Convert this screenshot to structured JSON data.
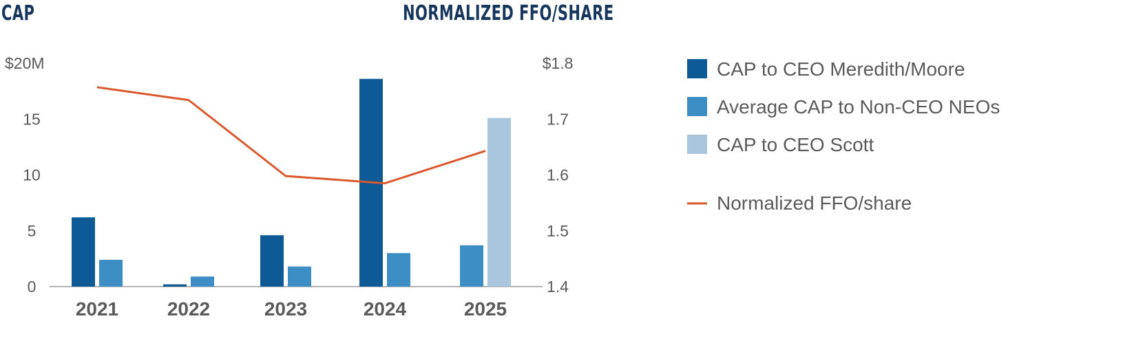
{
  "chart_data": {
    "type": "bar",
    "title_left": "CAP",
    "title_right": "NORMALIZED FFO/SHARE",
    "categories": [
      "2021",
      "2022",
      "2023",
      "2024",
      "2025"
    ],
    "y_left": {
      "ylim": [
        0,
        20
      ],
      "ticks": [
        "$20M",
        "15",
        "10",
        "5",
        "0"
      ],
      "tick_values": [
        20,
        15,
        10,
        5,
        0
      ]
    },
    "y_right": {
      "ylim": [
        1.4,
        1.8
      ],
      "ticks": [
        "$1.8",
        "1.7",
        "1.6",
        "1.5",
        "1.4"
      ],
      "tick_values": [
        1.8,
        1.7,
        1.6,
        1.5,
        1.4
      ]
    },
    "series": [
      {
        "name": "CAP to CEO Meredith/Moore",
        "kind": "bar",
        "axis": "left",
        "color": "#0d5a96",
        "values": [
          6.2,
          0.2,
          4.6,
          18.6,
          null
        ]
      },
      {
        "name": "Average CAP to Non-CEO NEOs",
        "kind": "bar",
        "axis": "left",
        "color": "#3c8ec5",
        "values": [
          2.4,
          0.9,
          1.8,
          3.0,
          3.7
        ]
      },
      {
        "name": "CAP to CEO Scott",
        "kind": "bar",
        "axis": "left",
        "color": "#a9c6dd",
        "values": [
          null,
          null,
          null,
          null,
          15.1
        ]
      },
      {
        "name": "Normalized FFO/share",
        "kind": "line",
        "axis": "right",
        "color": "#d9572b",
        "values": [
          1.757,
          1.734,
          1.598,
          1.585,
          1.643
        ]
      }
    ],
    "legend_position": "right",
    "grid": false
  }
}
